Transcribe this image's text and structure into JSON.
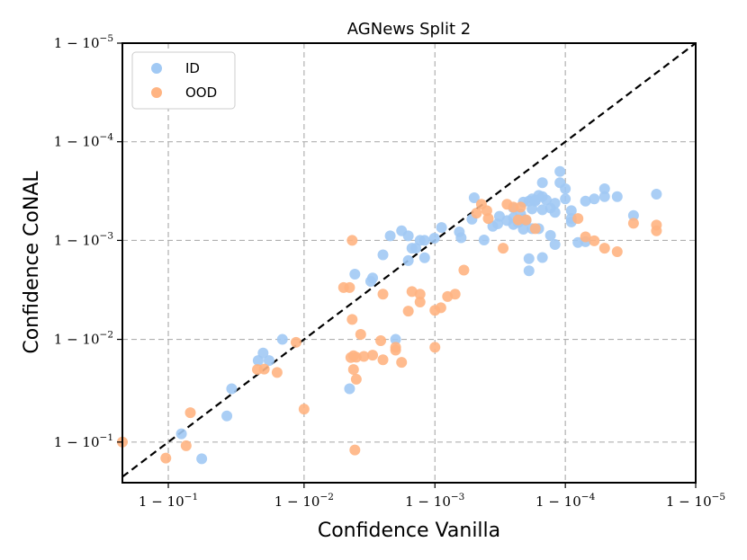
{
  "chart_data": {
    "type": "scatter",
    "title": "AGNews Split 2",
    "xlabel": "Confidence Vanilla",
    "ylabel": "Confidence CoNAL",
    "scale": "logit (axis shows 1 - 10^k)",
    "xlim": [
      0.8,
      0.99999
    ],
    "ylim": [
      0.777,
      0.99999
    ],
    "xticks": [
      {
        "value": 0.9,
        "label": "1 − 10^−1"
      },
      {
        "value": 0.99,
        "label": "1 − 10^−2"
      },
      {
        "value": 0.999,
        "label": "1 − 10^−3"
      },
      {
        "value": 0.9999,
        "label": "1 − 10^−4"
      },
      {
        "value": 0.99999,
        "label": "1 − 10^−5"
      }
    ],
    "yticks": [
      {
        "value": 0.9,
        "label": "1 − 10^−1"
      },
      {
        "value": 0.99,
        "label": "1 − 10^−2"
      },
      {
        "value": 0.999,
        "label": "1 − 10^−3"
      },
      {
        "value": 0.9999,
        "label": "1 − 10^−4"
      },
      {
        "value": 0.99999,
        "label": "1 − 10^−5"
      }
    ],
    "grid": true,
    "legend": "top-left",
    "reference_line": "y = x (dashed)",
    "colors": {
      "ID": "#a1c9f4",
      "OOD": "#ffb482"
    },
    "series": [
      {
        "name": "ID",
        "color": "#a1c9f4",
        "points": [
          [
            0.919,
            0.916
          ],
          [
            0.942,
            0.859
          ],
          [
            0.962,
            0.943
          ],
          [
            0.965,
            0.969
          ],
          [
            0.9816,
            0.9837
          ],
          [
            0.9778,
            0.9837
          ],
          [
            0.9796,
            0.9863
          ],
          [
            0.9854,
            0.99
          ],
          [
            0.9959,
            0.9978
          ],
          [
            0.9969,
            0.9974
          ],
          [
            0.997,
            0.9976
          ],
          [
            0.9975,
            0.9986
          ],
          [
            0.9978,
            0.9991
          ],
          [
            0.9982,
            0.9992
          ],
          [
            0.9984,
            0.9991
          ],
          [
            0.9984,
            0.9984
          ],
          [
            0.9985,
            0.9988
          ],
          [
            0.9986,
            0.9988
          ],
          [
            0.9987,
            0.999
          ],
          [
            0.9988,
            0.999
          ],
          [
            0.99899,
            0.99905
          ],
          [
            0.99911,
            0.99926
          ],
          [
            0.99935,
            0.99918
          ],
          [
            0.99937,
            0.99906
          ],
          [
            0.99948,
            0.99939
          ],
          [
            0.9995,
            0.99963
          ],
          [
            0.99958,
            0.99901
          ],
          [
            0.99964,
            0.99928
          ],
          [
            0.99967,
            0.99932
          ],
          [
            0.99968,
            0.99943
          ],
          [
            0.99972,
            0.99937
          ],
          [
            0.99975,
            0.99931
          ],
          [
            0.99975,
            0.99941
          ],
          [
            0.99975,
            0.99953
          ],
          [
            0.99977,
            0.99934
          ],
          [
            0.99978,
            0.99946
          ],
          [
            0.99979,
            0.99959
          ],
          [
            0.99979,
            0.99939
          ],
          [
            0.99979,
            0.99923
          ],
          [
            0.9998,
            0.99937
          ],
          [
            0.99981,
            0.9996
          ],
          [
            0.99981,
            0.99797
          ],
          [
            0.99981,
            0.99847
          ],
          [
            0.99982,
            0.99952
          ],
          [
            0.99982,
            0.99962
          ],
          [
            0.99982,
            0.99924
          ],
          [
            0.99983,
            0.99961
          ],
          [
            0.99984,
            0.99924
          ],
          [
            0.99985,
            0.99851
          ],
          [
            0.99985,
            0.99951
          ],
          [
            0.99985,
            0.99964
          ],
          [
            0.99986,
            0.99961
          ],
          [
            0.99987,
            0.99953
          ],
          [
            0.99988,
            0.99948
          ],
          [
            0.99988,
            0.99958
          ],
          [
            0.99983,
            0.9996
          ],
          [
            0.99984,
            0.99965
          ],
          [
            0.99985,
            0.99974
          ],
          [
            0.99987,
            0.99911
          ],
          [
            0.99988,
            0.9989
          ],
          [
            0.99989,
            0.9998
          ],
          [
            0.99989,
            0.99974
          ],
          [
            0.9999,
            0.99962
          ],
          [
            0.9999,
            0.9997
          ],
          [
            0.99991,
            0.99935
          ],
          [
            0.99992,
            0.99895
          ],
          [
            0.99993,
            0.99897
          ],
          [
            0.99991,
            0.9995
          ],
          [
            0.99991,
            0.9994
          ],
          [
            0.99994,
            0.99962
          ],
          [
            0.99995,
            0.9997
          ],
          [
            0.99993,
            0.9996
          ],
          [
            0.99995,
            0.99964
          ],
          [
            0.99996,
            0.99964
          ],
          [
            0.99997,
            0.99944
          ],
          [
            0.99998,
            0.99966
          ],
          [
            0.998,
            0.99
          ],
          [
            0.9955,
            0.969
          ],
          [
            0.9988,
            0.9985
          ]
        ]
      },
      {
        "name": "OOD",
        "color": "#ffb482",
        "points": [
          [
            0.8,
            0.9
          ],
          [
            0.896,
            0.861
          ],
          [
            0.925,
            0.892
          ],
          [
            0.93,
            0.947
          ],
          [
            0.99,
            0.951
          ],
          [
            0.98,
            0.9802
          ],
          [
            0.9957,
            0.9937
          ],
          [
            0.9963,
            0.9911
          ],
          [
            0.996,
            0.9849
          ],
          [
            0.9965,
            0.9852
          ],
          [
            0.9958,
            0.9854
          ],
          [
            0.9956,
            0.9848
          ],
          [
            0.997,
            0.9856
          ],
          [
            0.9957,
            0.999
          ],
          [
            0.9974,
            0.9897
          ],
          [
            0.9975,
            0.984
          ],
          [
            0.9985,
            0.9967
          ],
          [
            0.9987,
            0.9965
          ],
          [
            0.999,
            0.9949
          ],
          [
            0.9991,
            0.9952
          ],
          [
            0.9992,
            0.9963
          ],
          [
            0.9993,
            0.9965
          ],
          [
            0.9994,
            0.998
          ],
          [
            0.99952,
            0.99947
          ],
          [
            0.99956,
            0.99957
          ],
          [
            0.99961,
            0.9994
          ],
          [
            0.99972,
            0.99957
          ],
          [
            0.99975,
            0.99954
          ],
          [
            0.99977,
            0.99938
          ],
          [
            0.99978,
            0.99954
          ],
          [
            0.9998,
            0.99938
          ],
          [
            0.99983,
            0.99924
          ],
          [
            0.99992,
            0.9994
          ],
          [
            0.99993,
            0.99908
          ],
          [
            0.99994,
            0.99899
          ],
          [
            0.99995,
            0.9988
          ],
          [
            0.99996,
            0.9987
          ],
          [
            0.99997,
            0.99933
          ],
          [
            0.99998,
            0.9993
          ],
          [
            0.99998,
            0.9992
          ],
          [
            0.999,
            0.988
          ],
          [
            0.998,
            0.9872
          ],
          [
            0.996,
            0.975
          ],
          [
            0.9885,
            0.9893
          ],
          [
            0.984,
            0.9786
          ],
          [
            0.9775,
            0.98
          ],
          [
            0.998,
            0.988
          ],
          [
            0.9975,
            0.9965
          ],
          [
            0.995,
            0.997
          ],
          [
            0.9984,
            0.9948
          ],
          [
            0.9987,
            0.9958
          ],
          [
            0.9996,
            0.9995
          ],
          [
            0.9997,
            0.9988
          ],
          [
            0.9958,
            0.98
          ],
          [
            0.9959,
            0.882
          ],
          [
            0.9982,
            0.983
          ],
          [
            0.9955,
            0.997
          ]
        ]
      }
    ]
  }
}
